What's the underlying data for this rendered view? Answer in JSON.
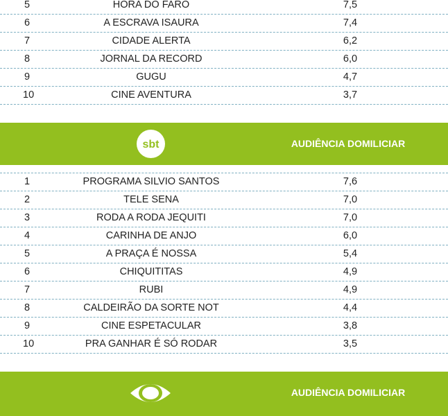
{
  "section1": {
    "rows": [
      {
        "rank": "5",
        "name": "HORA DO FARO",
        "value": "7,5"
      },
      {
        "rank": "6",
        "name": "A ESCRAVA ISAURA",
        "value": "7,4"
      },
      {
        "rank": "7",
        "name": "CIDADE ALERTA",
        "value": "6,2"
      },
      {
        "rank": "8",
        "name": "JORNAL DA RECORD",
        "value": "6,0"
      },
      {
        "rank": "9",
        "name": "GUGU",
        "value": "4,7"
      },
      {
        "rank": "10",
        "name": "CINE AVENTURA",
        "value": "3,7"
      }
    ]
  },
  "sbt_band": {
    "logo_text": "sbt",
    "title": "AUDIÊNCIA DOMILICIAR",
    "color": "#93bf1f"
  },
  "section2": {
    "rows": [
      {
        "rank": "1",
        "name": "PROGRAMA SILVIO SANTOS",
        "value": "7,6"
      },
      {
        "rank": "2",
        "name": "TELE SENA",
        "value": "7,0"
      },
      {
        "rank": "3",
        "name": "RODA A RODA JEQUITI",
        "value": "7,0"
      },
      {
        "rank": "4",
        "name": "CARINHA DE ANJO",
        "value": "6,0"
      },
      {
        "rank": "5",
        "name": "A PRAÇA É NOSSA",
        "value": "5,4"
      },
      {
        "rank": "6",
        "name": "CHIQUITITAS",
        "value": "4,9"
      },
      {
        "rank": "7",
        "name": "RUBI",
        "value": "4,9"
      },
      {
        "rank": "8",
        "name": "CALDEIRÃO DA SORTE NOT",
        "value": "4,4"
      },
      {
        "rank": "9",
        "name": "CINE ESPETACULAR",
        "value": "3,8"
      },
      {
        "rank": "10",
        "name": "PRA GANHAR É SÓ RODAR",
        "value": "3,5"
      }
    ]
  },
  "band_band": {
    "logo_icon": "eye-logo-icon",
    "title": "AUDIÊNCIA DOMILICIAR"
  }
}
